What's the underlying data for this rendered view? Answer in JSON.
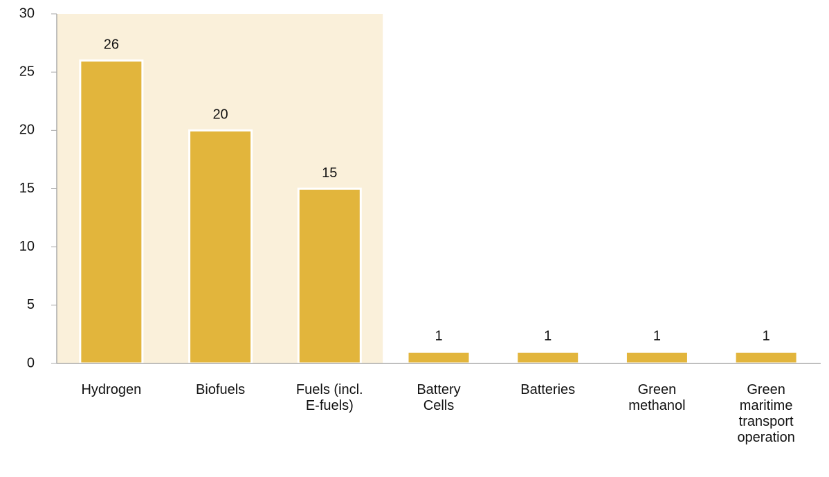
{
  "chart_data": {
    "type": "bar",
    "categories": [
      "Hydrogen",
      "Biofuels",
      "Fuels (incl. E-fuels)",
      "Battery Cells",
      "Batteries",
      "Green methanol",
      "Green maritime transport operation"
    ],
    "values": [
      26,
      20,
      15,
      1,
      1,
      1,
      1
    ],
    "color": "#e2b53c",
    "ylim": [
      0,
      30
    ],
    "yticks": [
      0,
      5,
      10,
      15,
      20,
      25,
      30
    ],
    "grid": false,
    "highlight": {
      "from": 0,
      "to": 2,
      "color": "#faf0da"
    }
  }
}
